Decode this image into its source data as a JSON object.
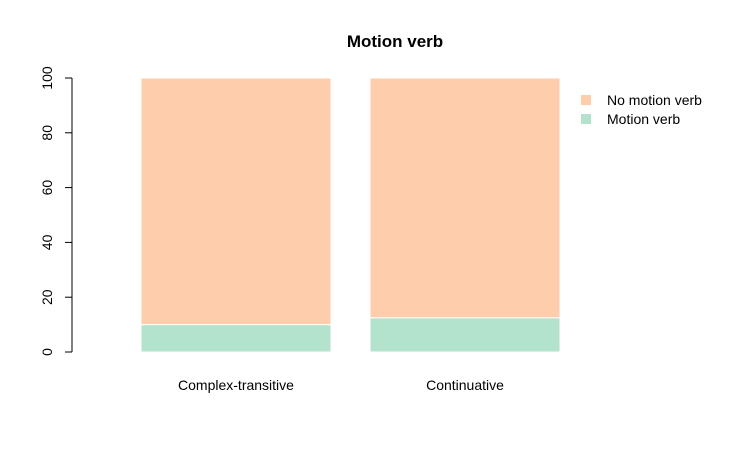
{
  "chart_data": {
    "type": "bar",
    "stacked": true,
    "title": "Motion verb",
    "xlabel": "",
    "ylabel": "",
    "ylim": [
      0,
      100
    ],
    "yticks": [
      0,
      20,
      40,
      60,
      80,
      100
    ],
    "grid": false,
    "legend_position": "top-right",
    "categories": [
      "Complex-transitive",
      "Continuative"
    ],
    "series": [
      {
        "name": "Motion verb",
        "values": [
          10,
          12.5
        ],
        "color": "#b3e2cd"
      },
      {
        "name": "No motion verb",
        "values": [
          90,
          87.5
        ],
        "color": "#fdcdac"
      }
    ],
    "legend_order": [
      "No motion verb",
      "Motion verb"
    ]
  }
}
